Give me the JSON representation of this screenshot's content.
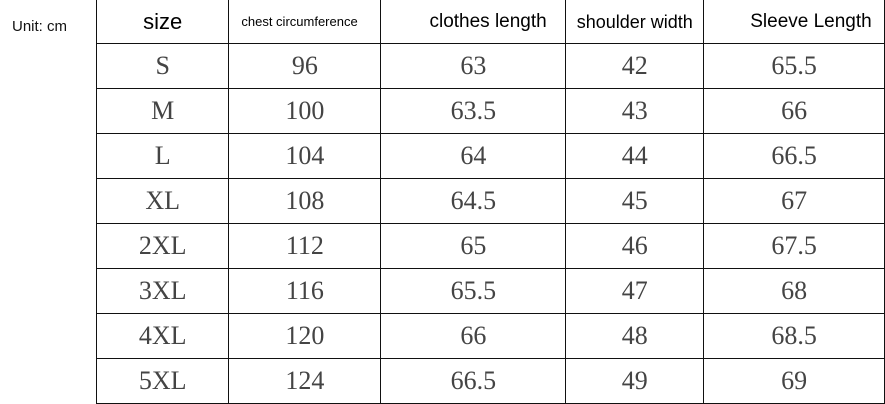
{
  "unit_label": "Unit: cm",
  "headers": [
    "size",
    "chest circumference",
    "clothes length",
    "shoulder width",
    "Sleeve Length"
  ],
  "rows": [
    [
      "S",
      "96",
      "63",
      "42",
      "65.5"
    ],
    [
      "M",
      "100",
      "63.5",
      "43",
      "66"
    ],
    [
      "L",
      "104",
      "64",
      "44",
      "66.5"
    ],
    [
      "XL",
      "108",
      "64.5",
      "45",
      "67"
    ],
    [
      "2XL",
      "112",
      "65",
      "46",
      "67.5"
    ],
    [
      "3XL",
      "116",
      "65.5",
      "47",
      "68"
    ],
    [
      "4XL",
      "120",
      "66",
      "48",
      "68.5"
    ],
    [
      "5XL",
      "124",
      "66.5",
      "49",
      "69"
    ]
  ]
}
